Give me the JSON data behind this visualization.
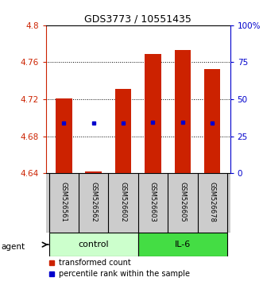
{
  "title": "GDS3773 / 10551435",
  "samples": [
    "GSM526561",
    "GSM526562",
    "GSM526602",
    "GSM526603",
    "GSM526605",
    "GSM526678"
  ],
  "groups": [
    "control",
    "control",
    "control",
    "IL-6",
    "IL-6",
    "IL-6"
  ],
  "bar_bottom": 4.64,
  "bar_tops": [
    4.721,
    4.642,
    4.731,
    4.769,
    4.773,
    4.753
  ],
  "percentile_values": [
    4.694,
    4.694,
    4.694,
    4.695,
    4.695,
    4.694
  ],
  "ylim": [
    4.64,
    4.8
  ],
  "y_ticks": [
    4.64,
    4.68,
    4.72,
    4.76,
    4.8
  ],
  "right_ticks": [
    0,
    25,
    50,
    75,
    100
  ],
  "bar_color": "#cc2200",
  "dot_color": "#0000cc",
  "axis_color_left": "#cc2200",
  "axis_color_right": "#0000cc",
  "bg_color": "#ffffff",
  "legend_red_label": "transformed count",
  "legend_blue_label": "percentile rank within the sample",
  "bar_width": 0.55,
  "control_color": "#ccffcc",
  "il6_color": "#44dd44",
  "sample_bg": "#cccccc"
}
